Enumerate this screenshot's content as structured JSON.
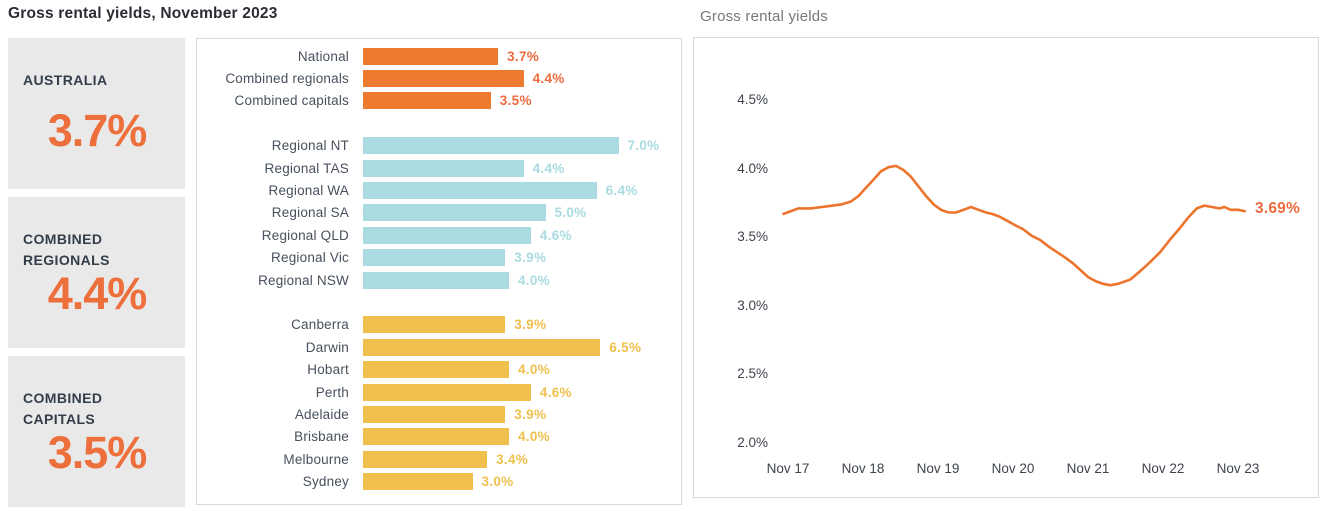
{
  "page": {
    "title": "Gross rental yields, November 2023"
  },
  "theme": {
    "accent_orange": "#ed6f3b",
    "card_background": "#e9e9e9",
    "text_dark": "#343e4b",
    "panel_border": "#d9d9d9",
    "muted_title_grey": "#77777f"
  },
  "summary_cards": [
    {
      "label": "AUSTRALIA",
      "value": "3.7%"
    },
    {
      "label": "COMBINED REGIONALS",
      "value": "4.4%"
    },
    {
      "label": "COMBINED CAPITALS",
      "value": "3.5%"
    }
  ],
  "chart_data": [
    {
      "type": "bar",
      "orientation": "horizontal",
      "title": "Gross rental yields, November 2023",
      "value_suffix": "%",
      "xlim": [
        0,
        8.7
      ],
      "grid": false,
      "groups": [
        {
          "name": "national",
          "bar_color": "#ec7b30",
          "value_color": "#ed6b3f",
          "items": [
            {
              "label": "National",
              "value": 3.7,
              "display": "3.7%"
            },
            {
              "label": "Combined regionals",
              "value": 4.4,
              "display": "4.4%"
            },
            {
              "label": "Combined capitals",
              "value": 3.5,
              "display": "3.5%"
            }
          ]
        },
        {
          "name": "regionals",
          "bar_color": "#a9dbe0",
          "value_color": "#a9dbe0",
          "items": [
            {
              "label": "Regional NT",
              "value": 7.0,
              "display": "7.0%"
            },
            {
              "label": "Regional TAS",
              "value": 4.4,
              "display": "4.4%"
            },
            {
              "label": "Regional WA",
              "value": 6.4,
              "display": "6.4%"
            },
            {
              "label": "Regional SA",
              "value": 5.0,
              "display": "5.0%"
            },
            {
              "label": "Regional QLD",
              "value": 4.6,
              "display": "4.6%"
            },
            {
              "label": "Regional Vic",
              "value": 3.9,
              "display": "3.9%"
            },
            {
              "label": "Regional NSW",
              "value": 4.0,
              "display": "4.0%"
            }
          ]
        },
        {
          "name": "capitals",
          "bar_color": "#f0c04f",
          "value_color": "#f0c04f",
          "items": [
            {
              "label": "Canberra",
              "value": 3.9,
              "display": "3.9%"
            },
            {
              "label": "Darwin",
              "value": 6.5,
              "display": "6.5%"
            },
            {
              "label": "Hobart",
              "value": 4.0,
              "display": "4.0%"
            },
            {
              "label": "Perth",
              "value": 4.6,
              "display": "4.6%"
            },
            {
              "label": "Adelaide",
              "value": 3.9,
              "display": "3.9%"
            },
            {
              "label": "Brisbane",
              "value": 4.0,
              "display": "4.0%"
            },
            {
              "label": "Melbourne",
              "value": 3.4,
              "display": "3.4%"
            },
            {
              "label": "Sydney",
              "value": 3.0,
              "display": "3.0%"
            }
          ]
        }
      ]
    },
    {
      "type": "line",
      "title": "Gross rental yields",
      "line_color": "#ec742d",
      "grid": false,
      "ylim": [
        2.0,
        4.75
      ],
      "end_label": "3.69%",
      "end_value": 3.69,
      "y_ticks": [
        {
          "label": "4.5%",
          "value": 4.5
        },
        {
          "label": "4.0%",
          "value": 4.0
        },
        {
          "label": "3.5%",
          "value": 3.5
        },
        {
          "label": "3.0%",
          "value": 3.0
        },
        {
          "label": "2.5%",
          "value": 2.5
        },
        {
          "label": "2.0%",
          "value": 2.0
        }
      ],
      "x_ticks": [
        "Nov 17",
        "Nov 18",
        "Nov 19",
        "Nov 20",
        "Nov 21",
        "Nov 22",
        "Nov 23"
      ],
      "x_unit_days_from_nov17": true,
      "points": [
        [
          -0.06,
          3.67
        ],
        [
          0.04,
          3.69
        ],
        [
          0.14,
          3.71
        ],
        [
          0.3,
          3.71
        ],
        [
          0.45,
          3.72
        ],
        [
          0.6,
          3.73
        ],
        [
          0.72,
          3.74
        ],
        [
          0.84,
          3.76
        ],
        [
          0.94,
          3.8
        ],
        [
          1.04,
          3.86
        ],
        [
          1.14,
          3.92
        ],
        [
          1.24,
          3.98
        ],
        [
          1.34,
          4.01
        ],
        [
          1.44,
          4.02
        ],
        [
          1.54,
          3.99
        ],
        [
          1.64,
          3.94
        ],
        [
          1.74,
          3.87
        ],
        [
          1.84,
          3.8
        ],
        [
          1.94,
          3.74
        ],
        [
          2.04,
          3.7
        ],
        [
          2.14,
          3.68
        ],
        [
          2.24,
          3.68
        ],
        [
          2.34,
          3.7
        ],
        [
          2.44,
          3.72
        ],
        [
          2.54,
          3.7
        ],
        [
          2.64,
          3.68
        ],
        [
          2.72,
          3.67
        ],
        [
          2.82,
          3.65
        ],
        [
          2.92,
          3.62
        ],
        [
          3.02,
          3.59
        ],
        [
          3.13,
          3.56
        ],
        [
          3.25,
          3.51
        ],
        [
          3.36,
          3.48
        ],
        [
          3.48,
          3.43
        ],
        [
          3.59,
          3.39
        ],
        [
          3.7,
          3.35
        ],
        [
          3.8,
          3.31
        ],
        [
          3.9,
          3.26
        ],
        [
          4.0,
          3.21
        ],
        [
          4.1,
          3.18
        ],
        [
          4.2,
          3.16
        ],
        [
          4.3,
          3.15
        ],
        [
          4.4,
          3.16
        ],
        [
          4.56,
          3.19
        ],
        [
          4.69,
          3.25
        ],
        [
          4.83,
          3.32
        ],
        [
          4.96,
          3.39
        ],
        [
          5.09,
          3.48
        ],
        [
          5.23,
          3.57
        ],
        [
          5.33,
          3.64
        ],
        [
          5.45,
          3.71
        ],
        [
          5.55,
          3.73
        ],
        [
          5.65,
          3.72
        ],
        [
          5.75,
          3.71
        ],
        [
          5.82,
          3.72
        ],
        [
          5.9,
          3.7
        ],
        [
          6.0,
          3.7
        ],
        [
          6.09,
          3.69
        ]
      ]
    }
  ]
}
